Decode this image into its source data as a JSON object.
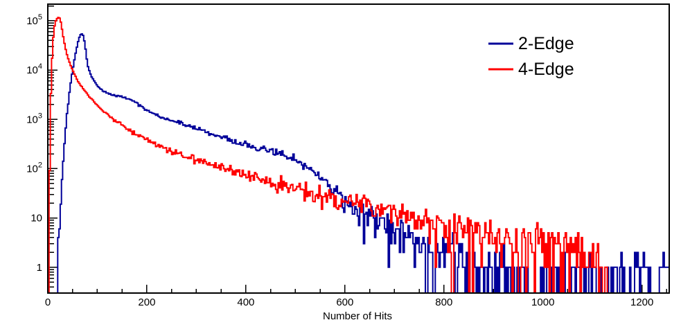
{
  "chart_data": {
    "type": "line",
    "style": "step-histogram",
    "title": "",
    "xlabel": "Number of Hits",
    "ylabel": "",
    "xlim": [
      0,
      1255
    ],
    "ylim": [
      0.3,
      217000
    ],
    "ylog": true,
    "grid": false,
    "x_major_ticks": [
      0,
      200,
      400,
      600,
      800,
      1000,
      1200
    ],
    "x_minor_step": 50,
    "y_major_ticks": [
      {
        "value": 1,
        "text": "1",
        "exp": ""
      },
      {
        "value": 10,
        "text": "10",
        "exp": ""
      },
      {
        "value": 100,
        "text": "10",
        "exp": "2"
      },
      {
        "value": 1000,
        "text": "10",
        "exp": "3"
      },
      {
        "value": 10000,
        "text": "10",
        "exp": "4"
      },
      {
        "value": 100000,
        "text": "10",
        "exp": "5"
      }
    ],
    "legend": {
      "position": "top-right",
      "entries": [
        {
          "label": "2-Edge",
          "color": "#000099"
        },
        {
          "label": "4-Edge",
          "color": "#ff0000"
        }
      ]
    },
    "bin_width": 2.5,
    "noise_seed": 20240521,
    "noise_factor_log": 0.55,
    "noise_factor_counts": 1.1,
    "series": [
      {
        "name": "2-Edge",
        "color": "#000099",
        "anchors": [
          [
            19,
            0.5
          ],
          [
            22,
            3
          ],
          [
            25,
            12
          ],
          [
            28,
            40
          ],
          [
            31,
            120
          ],
          [
            34,
            350
          ],
          [
            37,
            800
          ],
          [
            40,
            1600
          ],
          [
            43,
            3000
          ],
          [
            46,
            5200
          ],
          [
            49,
            8500
          ],
          [
            52,
            13000
          ],
          [
            55,
            19000
          ],
          [
            58,
            27000
          ],
          [
            61,
            37000
          ],
          [
            64,
            47000
          ],
          [
            66,
            52000
          ],
          [
            68,
            55000
          ],
          [
            70,
            53000
          ],
          [
            72,
            49000
          ],
          [
            74,
            38000
          ],
          [
            76,
            28000
          ],
          [
            78,
            19000
          ],
          [
            80,
            13500
          ],
          [
            82,
            10800
          ],
          [
            86,
            8300
          ],
          [
            90,
            6900
          ],
          [
            95,
            5700
          ],
          [
            100,
            4800
          ],
          [
            108,
            4000
          ],
          [
            118,
            3500
          ],
          [
            130,
            3150
          ],
          [
            145,
            2950
          ],
          [
            160,
            2700
          ],
          [
            175,
            2250
          ],
          [
            190,
            1800
          ],
          [
            205,
            1450
          ],
          [
            220,
            1200
          ],
          [
            235,
            1050
          ],
          [
            250,
            950
          ],
          [
            265,
            870
          ],
          [
            285,
            750
          ],
          [
            305,
            635
          ],
          [
            325,
            535
          ],
          [
            345,
            455
          ],
          [
            365,
            385
          ],
          [
            385,
            335
          ],
          [
            405,
            295
          ],
          [
            425,
            260
          ],
          [
            445,
            235
          ],
          [
            465,
            210
          ],
          [
            485,
            180
          ],
          [
            500,
            155
          ],
          [
            515,
            125
          ],
          [
            530,
            100
          ],
          [
            545,
            75
          ],
          [
            560,
            55
          ],
          [
            575,
            38
          ],
          [
            590,
            26
          ],
          [
            605,
            19
          ],
          [
            620,
            15
          ],
          [
            635,
            12.5
          ],
          [
            650,
            10.5
          ],
          [
            665,
            9
          ],
          [
            685,
            7
          ],
          [
            705,
            5.5
          ],
          [
            725,
            4.3
          ],
          [
            745,
            3.4
          ],
          [
            765,
            2.7
          ],
          [
            785,
            2.2
          ],
          [
            805,
            1.8
          ],
          [
            830,
            1.4
          ],
          [
            855,
            1.1
          ],
          [
            885,
            0.85
          ],
          [
            915,
            0.65
          ],
          [
            950,
            0.5
          ],
          [
            1000,
            0.42
          ],
          [
            1060,
            0.4
          ],
          [
            1120,
            0.42
          ],
          [
            1180,
            0.4
          ],
          [
            1255,
            0.35
          ]
        ]
      },
      {
        "name": "4-Edge",
        "color": "#ff0000",
        "anchors": [
          [
            1,
            0.3
          ],
          [
            2,
            2
          ],
          [
            3,
            15
          ],
          [
            4,
            120
          ],
          [
            5,
            700
          ],
          [
            6,
            2800
          ],
          [
            8,
            12000
          ],
          [
            10,
            32000
          ],
          [
            12,
            58000
          ],
          [
            14,
            82000
          ],
          [
            16,
            98000
          ],
          [
            18,
            108000
          ],
          [
            20,
            114000
          ],
          [
            22,
            117000
          ],
          [
            24,
            113000
          ],
          [
            26,
            98000
          ],
          [
            28,
            76000
          ],
          [
            30,
            56000
          ],
          [
            33,
            38000
          ],
          [
            36,
            27000
          ],
          [
            40,
            18500
          ],
          [
            44,
            14000
          ],
          [
            48,
            11000
          ],
          [
            53,
            8400
          ],
          [
            58,
            6700
          ],
          [
            64,
            5300
          ],
          [
            70,
            4300
          ],
          [
            77,
            3500
          ],
          [
            84,
            2900
          ],
          [
            92,
            2350
          ],
          [
            100,
            1950
          ],
          [
            110,
            1550
          ],
          [
            120,
            1270
          ],
          [
            130,
            1060
          ],
          [
            142,
            870
          ],
          [
            155,
            700
          ],
          [
            170,
            560
          ],
          [
            185,
            460
          ],
          [
            200,
            385
          ],
          [
            215,
            330
          ],
          [
            230,
            285
          ],
          [
            245,
            245
          ],
          [
            260,
            215
          ],
          [
            280,
            180
          ],
          [
            300,
            152
          ],
          [
            320,
            130
          ],
          [
            340,
            111
          ],
          [
            360,
            96
          ],
          [
            380,
            84
          ],
          [
            400,
            73
          ],
          [
            420,
            64
          ],
          [
            440,
            56
          ],
          [
            460,
            49
          ],
          [
            480,
            43
          ],
          [
            500,
            38
          ],
          [
            520,
            34
          ],
          [
            540,
            30
          ],
          [
            560,
            27
          ],
          [
            580,
            24
          ],
          [
            600,
            21.5
          ],
          [
            620,
            19
          ],
          [
            640,
            17
          ],
          [
            660,
            15
          ],
          [
            680,
            13.5
          ],
          [
            700,
            12
          ],
          [
            720,
            11
          ],
          [
            740,
            10
          ],
          [
            760,
            9
          ],
          [
            780,
            8
          ],
          [
            800,
            7.3
          ],
          [
            820,
            6.6
          ],
          [
            840,
            6
          ],
          [
            860,
            5.5
          ],
          [
            880,
            5
          ],
          [
            900,
            4.6
          ],
          [
            920,
            4.2
          ],
          [
            940,
            3.8
          ],
          [
            960,
            3.5
          ],
          [
            980,
            3.2
          ],
          [
            1000,
            2.9
          ],
          [
            1020,
            2.7
          ],
          [
            1040,
            2.5
          ],
          [
            1060,
            2.3
          ],
          [
            1080,
            2.1
          ],
          [
            1100,
            1.9
          ],
          [
            1112,
            1.4
          ],
          [
            1122,
            0.8
          ],
          [
            1132,
            0.35
          ],
          [
            1142,
            0.08
          ],
          [
            1160,
            0.02
          ],
          [
            1255,
            0.02
          ]
        ]
      }
    ]
  }
}
